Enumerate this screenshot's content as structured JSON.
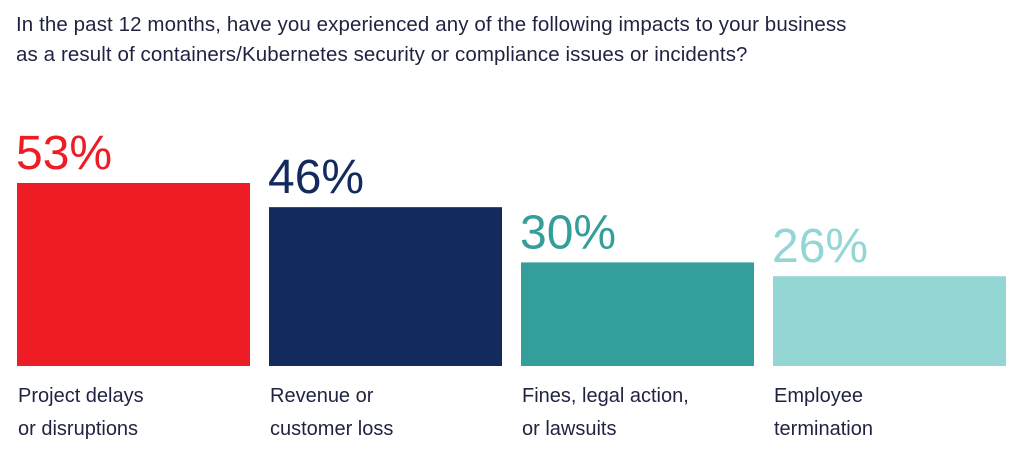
{
  "question": {
    "line1": "In the past 12 months, have you experienced any of the following impacts to your business",
    "line2": "as a result of containers/Kubernetes security or compliance issues or incidents?"
  },
  "chart_data": {
    "type": "bar",
    "categories": [
      [
        "Project delays",
        "or disruptions"
      ],
      [
        "Revenue or",
        "customer loss"
      ],
      [
        "Fines, legal action,",
        "or lawsuits"
      ],
      [
        "Employee",
        "termination"
      ]
    ],
    "values": [
      53,
      46,
      30,
      26
    ],
    "value_labels": [
      "53%",
      "46%",
      "30%",
      "26%"
    ],
    "colors": [
      "#ee1c25",
      "#122a5e",
      "#339e9a",
      "#94d6d3"
    ],
    "ylim": [
      0,
      53
    ],
    "grid": false,
    "legend": "none"
  }
}
